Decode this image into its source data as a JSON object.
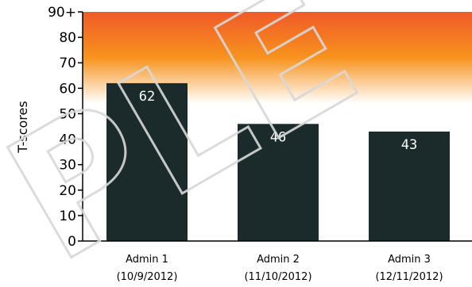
{
  "chart_data": {
    "type": "bar",
    "title": "",
    "xlabel": "",
    "ylabel": "T-scores",
    "ylim": [
      0,
      90
    ],
    "yticks": [
      "0",
      "10",
      "20",
      "30",
      "40",
      "50",
      "60",
      "70",
      "80",
      "90+"
    ],
    "categories": [
      {
        "line1": "Admin 1",
        "line2": "(10/9/2012)"
      },
      {
        "line1": "Admin 2",
        "line2": "(11/10/2012)"
      },
      {
        "line1": "Admin 3",
        "line2": "(12/11/2012)"
      }
    ],
    "values": [
      62,
      46,
      43
    ],
    "bar_color": "#1b2b2b",
    "value_label_color": "#ffffff",
    "background_gradient": {
      "top_color": "#f05a28",
      "mid_color": "#f7931e",
      "bottom_color": "#ffffff"
    },
    "watermark": "PLE"
  }
}
